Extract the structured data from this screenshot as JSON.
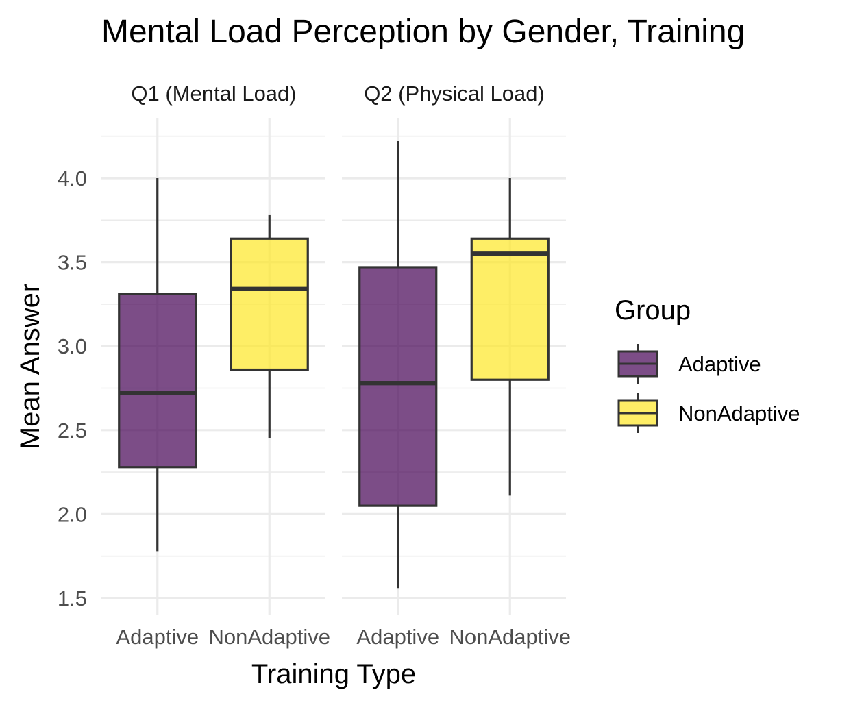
{
  "chart_data": {
    "type": "box",
    "title": "Mental Load Perception by Gender, Training",
    "xlabel": "Training Type",
    "ylabel": "Mean Answer",
    "ylim": [
      1.45,
      4.35
    ],
    "yticks": [
      1.5,
      2.0,
      2.5,
      3.0,
      3.5,
      4.0
    ],
    "ytick_labels": [
      "1.5",
      "2.0",
      "2.5",
      "3.0",
      "3.5",
      "4.0"
    ],
    "grid": true,
    "categories": [
      "Adaptive",
      "NonAdaptive"
    ],
    "facets": [
      {
        "label": "Q1 (Mental Load)",
        "boxes": [
          {
            "category": "Adaptive",
            "group": "Adaptive",
            "min": 1.78,
            "q1": 2.28,
            "median": 2.72,
            "q3": 3.31,
            "max": 4.0
          },
          {
            "category": "NonAdaptive",
            "group": "NonAdaptive",
            "min": 2.45,
            "q1": 2.86,
            "median": 3.34,
            "q3": 3.64,
            "max": 3.78
          }
        ]
      },
      {
        "label": "Q2 (Physical Load)",
        "boxes": [
          {
            "category": "Adaptive",
            "group": "Adaptive",
            "min": 1.56,
            "q1": 2.05,
            "median": 2.78,
            "q3": 3.47,
            "max": 4.22
          },
          {
            "category": "NonAdaptive",
            "group": "NonAdaptive",
            "min": 2.11,
            "q1": 2.8,
            "median": 3.55,
            "q3": 3.64,
            "max": 4.0
          }
        ]
      }
    ],
    "legend": {
      "title": "Group",
      "position": "right",
      "entries": [
        {
          "label": "Adaptive",
          "color": "#440154"
        },
        {
          "label": "NonAdaptive",
          "color": "#FDE725"
        }
      ]
    },
    "colors": {
      "Adaptive": "#440154",
      "NonAdaptive": "#FDE725",
      "box_outline": "#333333",
      "grid": "#ebebeb"
    }
  }
}
